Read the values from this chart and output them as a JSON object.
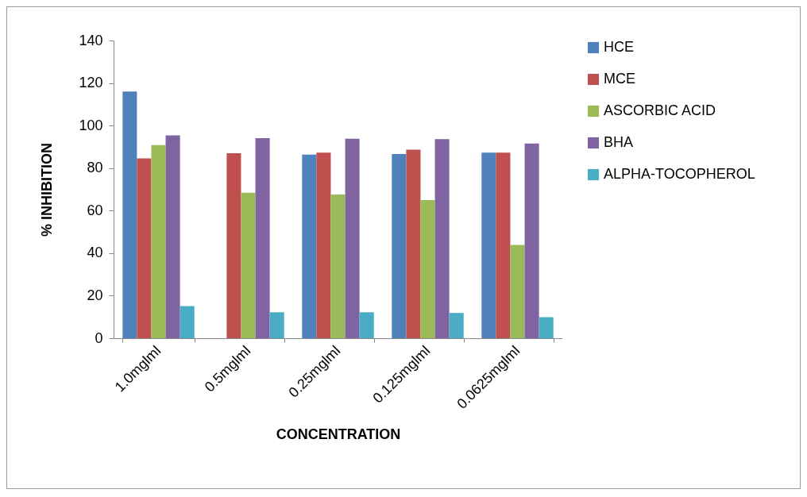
{
  "chart_data": {
    "type": "bar",
    "xlabel": "CONCENTRATION",
    "ylabel": "% INHIBITION",
    "categories": [
      "1.0mglml",
      "0.5mglml",
      "0.25mglml",
      "0.125mglml",
      "0.0625mglml"
    ],
    "series": [
      {
        "name": "HCE",
        "color": "#4f81bd",
        "values": [
          116,
          null,
          86.3,
          86.6,
          87.3
        ]
      },
      {
        "name": "MCE",
        "color": "#c0504d",
        "values": [
          84.6,
          87,
          87.3,
          88.7,
          87.3
        ]
      },
      {
        "name": "ASCORBIC ACID",
        "color": "#9bbb59",
        "values": [
          90.8,
          68.4,
          67.6,
          65,
          43.9
        ]
      },
      {
        "name": "BHA",
        "color": "#8064a2",
        "values": [
          95.4,
          94.1,
          93.8,
          93.6,
          91.6
        ]
      },
      {
        "name": "ALPHA-TOCOPHEROL",
        "color": "#4bacc6",
        "values": [
          15.1,
          12.2,
          12.2,
          11.9,
          9.9
        ]
      }
    ],
    "ylim": [
      0,
      140
    ],
    "yticks": [
      0,
      20,
      40,
      60,
      80,
      100,
      120,
      140
    ],
    "grid": false,
    "legend": "right"
  }
}
